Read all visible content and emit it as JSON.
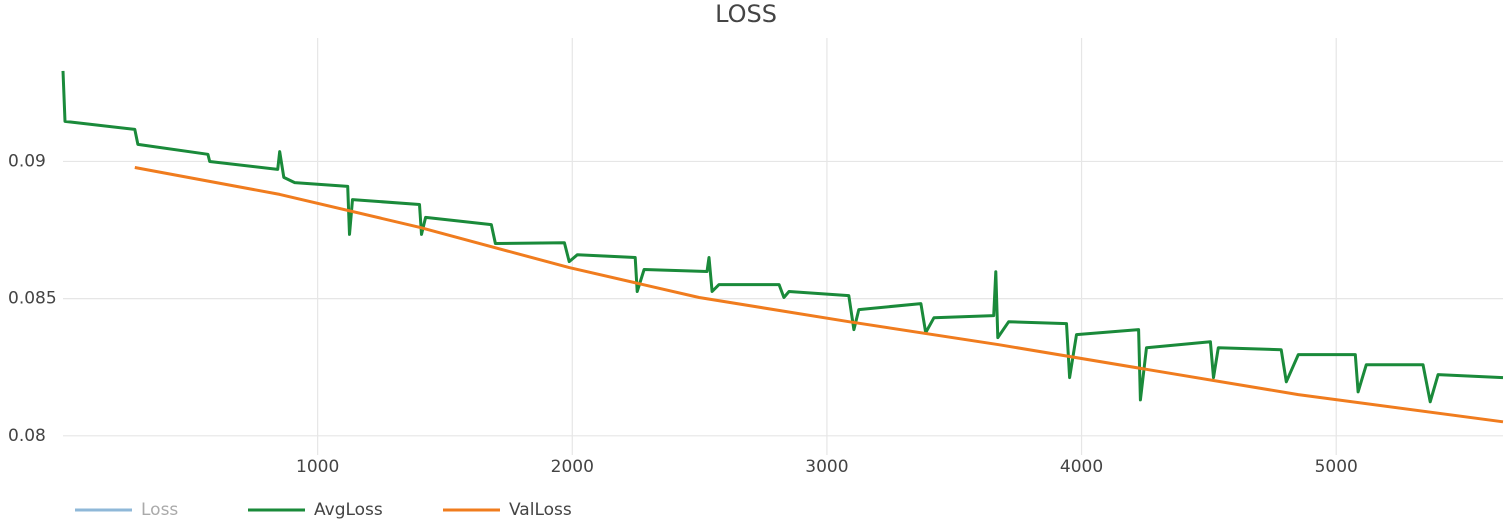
{
  "chart_data": {
    "type": "line",
    "title": "LOSS",
    "xlim": [
      0,
      5655
    ],
    "ylim": [
      0.0793,
      0.0945
    ],
    "xticks": [
      1000,
      2000,
      3000,
      4000,
      5000
    ],
    "yticks": [
      0.08,
      0.085,
      0.09
    ],
    "grid": true,
    "legend": "bottom",
    "series": [
      {
        "name": "Loss",
        "color": "#8fb8d8",
        "visible": false
      },
      {
        "name": "AvgLoss",
        "color": "#1a8a3a",
        "x": [
          0,
          8,
          282,
          294,
          569,
          576,
          843,
          851,
          867,
          910,
          1118,
          1125,
          1137,
          1400,
          1408,
          1424,
          1682,
          1698,
          1969,
          1988,
          2020,
          2247,
          2255,
          2282,
          2529,
          2537,
          2549,
          2576,
          2812,
          2831,
          2851,
          3086,
          3106,
          3125,
          3369,
          3388,
          3420,
          3655,
          3663,
          3671,
          3714,
          3941,
          3953,
          3980,
          4224,
          4231,
          4255,
          4506,
          4518,
          4537,
          4784,
          4804,
          4851,
          5075,
          5086,
          5118,
          5341,
          5369,
          5400,
          5655
        ],
        "values": [
          0.0933,
          0.09146,
          0.09117,
          0.09062,
          0.09026,
          0.09,
          0.08971,
          0.09036,
          0.08942,
          0.08923,
          0.08909,
          0.08734,
          0.08861,
          0.08843,
          0.08734,
          0.08796,
          0.0877,
          0.08701,
          0.08704,
          0.08635,
          0.0866,
          0.0865,
          0.08526,
          0.08606,
          0.08599,
          0.0865,
          0.08526,
          0.08551,
          0.08551,
          0.08504,
          0.08526,
          0.08511,
          0.08387,
          0.0846,
          0.08482,
          0.08376,
          0.0843,
          0.08438,
          0.08598,
          0.08358,
          0.08416,
          0.08409,
          0.08212,
          0.08369,
          0.08387,
          0.08131,
          0.08321,
          0.08343,
          0.08212,
          0.08321,
          0.08314,
          0.08197,
          0.08296,
          0.08296,
          0.0816,
          0.08259,
          0.08259,
          0.08124,
          0.08223,
          0.08212
        ]
      },
      {
        "name": "ValLoss",
        "color": "#f07c1e",
        "x": [
          282,
          851,
          1400,
          1988,
          2498,
          3086,
          3675,
          4263,
          4851,
          5655
        ],
        "values": [
          0.08978,
          0.0888,
          0.0876,
          0.08613,
          0.08504,
          0.08416,
          0.08332,
          0.08241,
          0.0815,
          0.08051
        ]
      }
    ]
  }
}
